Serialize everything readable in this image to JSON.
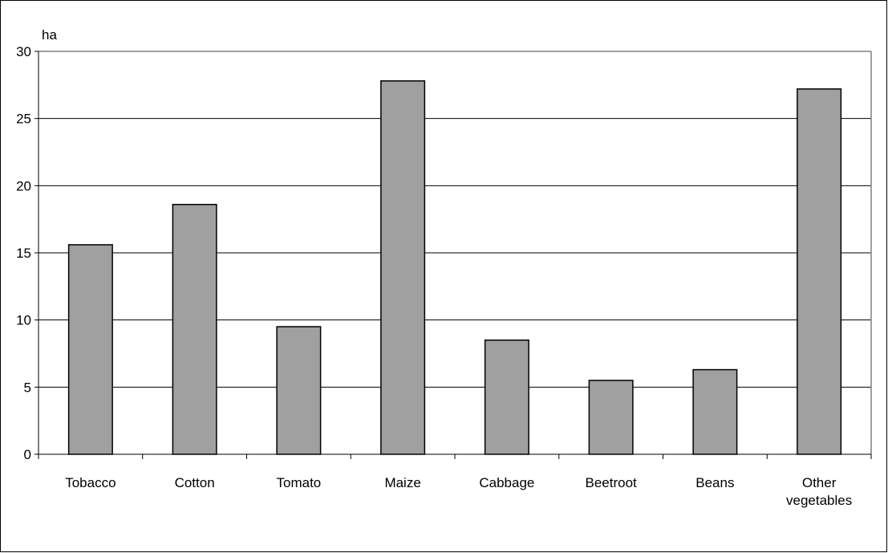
{
  "chart_data": {
    "type": "bar",
    "title": "",
    "xlabel": "",
    "ylabel": "ha",
    "ylim": [
      0,
      30
    ],
    "yticks": [
      0,
      5,
      10,
      15,
      20,
      25,
      30
    ],
    "grid": true,
    "categories": [
      "Tobacco",
      "Cotton",
      "Tomato",
      "Maize",
      "Cabbage",
      "Beetroot",
      "Beans",
      "Other vegetables"
    ],
    "category_label_lines": [
      [
        "Tobacco"
      ],
      [
        "Cotton"
      ],
      [
        "Tomato"
      ],
      [
        "Maize"
      ],
      [
        "Cabbage"
      ],
      [
        "Beetroot"
      ],
      [
        "Beans"
      ],
      [
        "Other",
        "vegetables"
      ]
    ],
    "values": [
      15.6,
      18.6,
      9.5,
      27.8,
      8.5,
      5.5,
      6.3,
      27.2
    ],
    "colors": {
      "bar": "#a0a0a0",
      "bar_edge": "#000000",
      "grid": "#000000",
      "axis_frame": "#808080"
    }
  }
}
